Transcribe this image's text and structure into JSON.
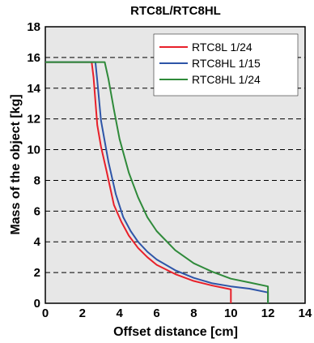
{
  "chart_data": {
    "type": "line",
    "title": "RTC8L/RTC8HL",
    "xlabel": "Offset distance [cm]",
    "ylabel": "Mass of the object [kg]",
    "xlim": [
      0,
      14
    ],
    "ylim": [
      0,
      18
    ],
    "xticks": [
      "0",
      "2",
      "4",
      "6",
      "8",
      "10",
      "12",
      "14"
    ],
    "yticks": [
      "0",
      "2",
      "4",
      "6",
      "8",
      "10",
      "12",
      "14",
      "16",
      "18"
    ],
    "grid": "horizontal dashed",
    "legend_position": "top-right",
    "series": [
      {
        "name": "RTC8L 1/24",
        "color": "#e8202a",
        "points": [
          [
            0,
            15.7
          ],
          [
            2.5,
            15.7
          ],
          [
            2.6,
            14.7
          ],
          [
            2.8,
            11.6
          ],
          [
            3.0,
            10.2
          ],
          [
            3.3,
            8.6
          ],
          [
            3.7,
            6.4
          ],
          [
            4.1,
            5.3
          ],
          [
            4.5,
            4.4
          ],
          [
            5.0,
            3.6
          ],
          [
            5.5,
            3.0
          ],
          [
            6.0,
            2.5
          ],
          [
            7.0,
            1.9
          ],
          [
            8.0,
            1.45
          ],
          [
            9.0,
            1.15
          ],
          [
            10.0,
            0.9
          ],
          [
            10.0,
            0
          ]
        ]
      },
      {
        "name": "RTC8HL 1/15",
        "color": "#2e55a8",
        "points": [
          [
            0,
            15.7
          ],
          [
            2.7,
            15.7
          ],
          [
            2.8,
            14.5
          ],
          [
            3.0,
            11.9
          ],
          [
            3.4,
            9.2
          ],
          [
            3.8,
            7.1
          ],
          [
            4.2,
            5.6
          ],
          [
            4.6,
            4.7
          ],
          [
            5.0,
            4.0
          ],
          [
            5.5,
            3.35
          ],
          [
            6.0,
            2.85
          ],
          [
            7.0,
            2.15
          ],
          [
            8.0,
            1.65
          ],
          [
            9.0,
            1.3
          ],
          [
            10.0,
            1.1
          ],
          [
            11.0,
            0.95
          ],
          [
            12.0,
            0.7
          ],
          [
            12.0,
            0
          ]
        ]
      },
      {
        "name": "RTC8HL 1/24",
        "color": "#2f8a3a",
        "points": [
          [
            0,
            15.7
          ],
          [
            3.2,
            15.7
          ],
          [
            3.4,
            14.6
          ],
          [
            3.7,
            12.6
          ],
          [
            4.0,
            10.7
          ],
          [
            4.5,
            8.5
          ],
          [
            5.0,
            6.9
          ],
          [
            5.5,
            5.6
          ],
          [
            6.0,
            4.7
          ],
          [
            7.0,
            3.45
          ],
          [
            8.0,
            2.6
          ],
          [
            9.0,
            2.05
          ],
          [
            10.0,
            1.6
          ],
          [
            11.0,
            1.35
          ],
          [
            12.0,
            1.1
          ],
          [
            12.0,
            0
          ]
        ]
      }
    ]
  }
}
